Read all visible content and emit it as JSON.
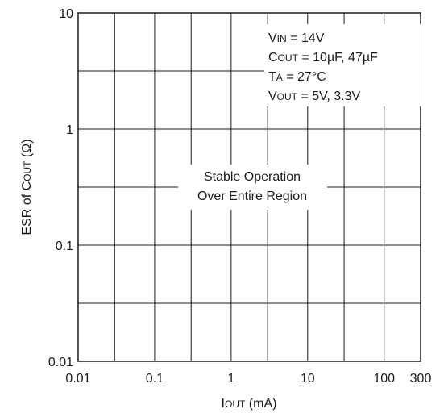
{
  "chart_data": {
    "type": "line",
    "x_scale": "log",
    "y_scale": "log",
    "xlim": [
      0.01,
      300
    ],
    "ylim": [
      0.01,
      10
    ],
    "x_ticks": [
      {
        "value": 0.01,
        "label": "0.01"
      },
      {
        "value": 0.1,
        "label": "0.1"
      },
      {
        "value": 1,
        "label": "1"
      },
      {
        "value": 10,
        "label": "10"
      },
      {
        "value": 100,
        "label": "100"
      },
      {
        "value": 300,
        "label": "300"
      }
    ],
    "y_ticks": [
      {
        "value": 0.01,
        "label": "0.01"
      },
      {
        "value": 0.1,
        "label": "0.1"
      },
      {
        "value": 1,
        "label": "1"
      },
      {
        "value": 10,
        "label": "10"
      }
    ],
    "xlabel": {
      "main": "I",
      "sub": "OUT",
      "rest": " (mA)"
    },
    "ylabel": {
      "pre": "ESR of C",
      "sub": "OUT",
      "rest": " (Ω)"
    },
    "grid": true,
    "conditions": [
      {
        "pre": "V",
        "sub": "IN",
        "rest": " = 14V"
      },
      {
        "pre": "C",
        "sub": "OUT",
        "rest": " = 10µF, 47µF"
      },
      {
        "pre": "T",
        "sub": "A",
        "rest": " = 27°C"
      },
      {
        "pre": "V",
        "sub": "OUT",
        "rest": " = 5V, 3.3V"
      }
    ],
    "region_label": [
      "Stable Operation",
      "Over Entire Region"
    ],
    "series": []
  },
  "colors": {
    "axis": "#1a1a1a",
    "grid": "#1a1a1a",
    "background": "#ffffff"
  }
}
